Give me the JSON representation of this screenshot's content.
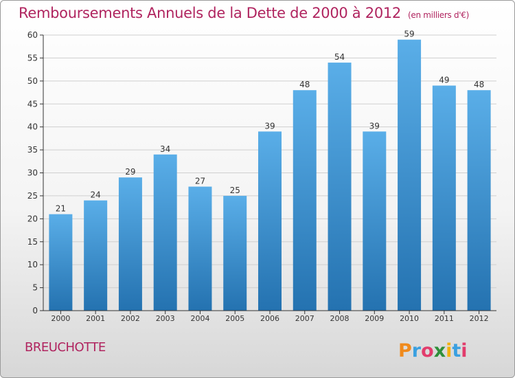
{
  "header": {
    "title": "Remboursements Annuels de la Dette de 2000 à 2012",
    "unit": "(en milliers d'€)"
  },
  "footer": {
    "commune": "BREUCHOTTE",
    "logo_text": "Proxiti"
  },
  "colors": {
    "title": "#b0245f",
    "bar_top": "#5aaee8",
    "bar_bottom": "#2472b0",
    "grid": "#cfcfcf"
  },
  "chart_data": {
    "type": "bar",
    "title": "Remboursements Annuels de la Dette de 2000 à 2012",
    "unit": "(en milliers d'€)",
    "categories": [
      "2000",
      "2001",
      "2002",
      "2003",
      "2004",
      "2005",
      "2006",
      "2007",
      "2008",
      "2009",
      "2010",
      "2011",
      "2012"
    ],
    "values": [
      21,
      24,
      29,
      34,
      27,
      25,
      39,
      48,
      54,
      39,
      59,
      49,
      48
    ],
    "ylim": [
      0,
      60
    ],
    "yticks": [
      0,
      5,
      10,
      15,
      20,
      25,
      30,
      35,
      40,
      45,
      50,
      55,
      60
    ],
    "grid": true,
    "data_labels": true
  }
}
